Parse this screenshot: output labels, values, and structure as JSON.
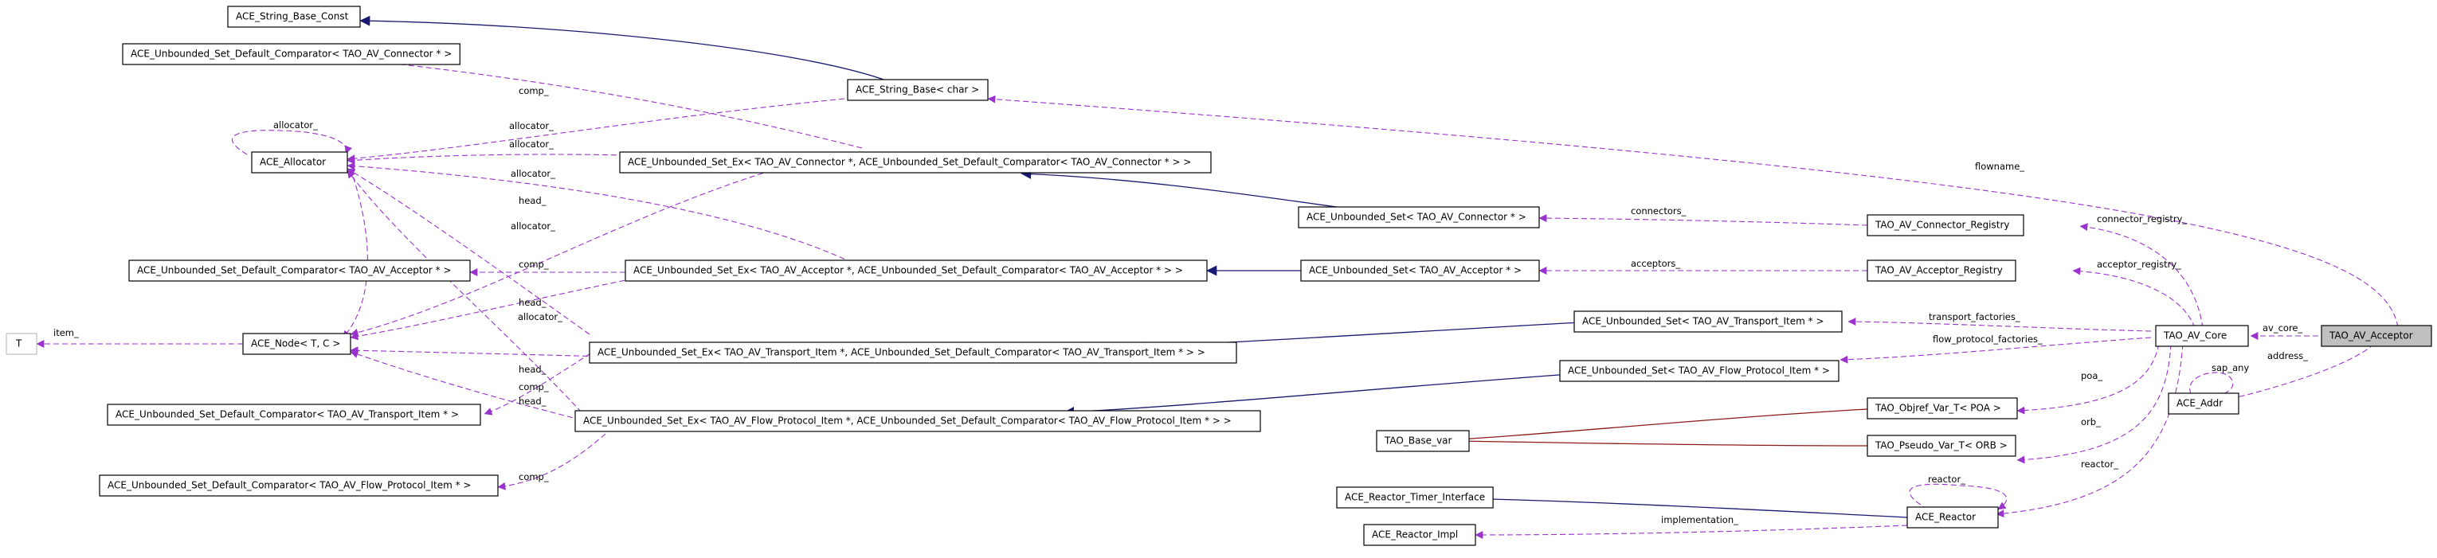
{
  "nodes": {
    "n_string_base_const": "ACE_String_Base_Const",
    "n_usdc_connector": "ACE_Unbounded_Set_Default_Comparator< TAO_AV_Connector * >",
    "n_string_base": "ACE_String_Base< char >",
    "n_allocator": "ACE_Allocator",
    "n_usex_connector": "ACE_Unbounded_Set_Ex< TAO_AV_Connector *, ACE_Unbounded_Set_Default_Comparator< TAO_AV_Connector * > >",
    "n_us_connector": "ACE_Unbounded_Set< TAO_AV_Connector * >",
    "n_connector_registry": "TAO_AV_Connector_Registry",
    "n_usdc_acceptor": "ACE_Unbounded_Set_Default_Comparator< TAO_AV_Acceptor * >",
    "n_usex_acceptor": "ACE_Unbounded_Set_Ex< TAO_AV_Acceptor *, ACE_Unbounded_Set_Default_Comparator< TAO_AV_Acceptor * > >",
    "n_us_acceptor": "ACE_Unbounded_Set< TAO_AV_Acceptor * >",
    "n_acceptor_registry": "TAO_AV_Acceptor_Registry",
    "n_t": "T",
    "n_node": "ACE_Node< T, C >",
    "n_us_transport": "ACE_Unbounded_Set< TAO_AV_Transport_Item * >",
    "n_av_core": "TAO_AV_Core",
    "n_av_acceptor": "TAO_AV_Acceptor",
    "n_usex_transport": "ACE_Unbounded_Set_Ex< TAO_AV_Transport_Item *, ACE_Unbounded_Set_Default_Comparator< TAO_AV_Transport_Item * > >",
    "n_us_flow": "ACE_Unbounded_Set< TAO_AV_Flow_Protocol_Item * >",
    "n_addr": "ACE_Addr",
    "n_usdc_transport": "ACE_Unbounded_Set_Default_Comparator< TAO_AV_Transport_Item * >",
    "n_usex_flow": "ACE_Unbounded_Set_Ex< TAO_AV_Flow_Protocol_Item *, ACE_Unbounded_Set_Default_Comparator< TAO_AV_Flow_Protocol_Item * > >",
    "n_objref_poa": "TAO_Objref_Var_T< POA >",
    "n_base_var": "TAO_Base_var",
    "n_pseudo_orb": "TAO_Pseudo_Var_T< ORB >",
    "n_usdc_flow": "ACE_Unbounded_Set_Default_Comparator< TAO_AV_Flow_Protocol_Item * >",
    "n_timer_iface": "ACE_Reactor_Timer_Interface",
    "n_reactor": "ACE_Reactor",
    "n_reactor_impl": "ACE_Reactor_Impl"
  },
  "edge_labels": {
    "allocator": "allocator_",
    "comp": "comp_",
    "head": "head_",
    "item": "item_",
    "flowname": "flowname_",
    "connectors": "connectors_",
    "connector_registry": "connector_registry_",
    "acceptors": "acceptors_",
    "acceptor_registry": "acceptor_registry_",
    "transport_factories": "transport_factories_",
    "flow_protocol_factories": "flow_protocol_factories_",
    "av_core": "av_core_",
    "sap_any": "sap_any",
    "address": "address_",
    "poa": "poa_",
    "orb": "orb_",
    "reactor": "reactor_",
    "implementation": "implementation_"
  },
  "colors": {
    "usage_edge": "#9a32cd",
    "inheritance_edge": "#191970",
    "template_edge": "#8b1a1a",
    "highlight_fill": "#bfbfbf"
  }
}
